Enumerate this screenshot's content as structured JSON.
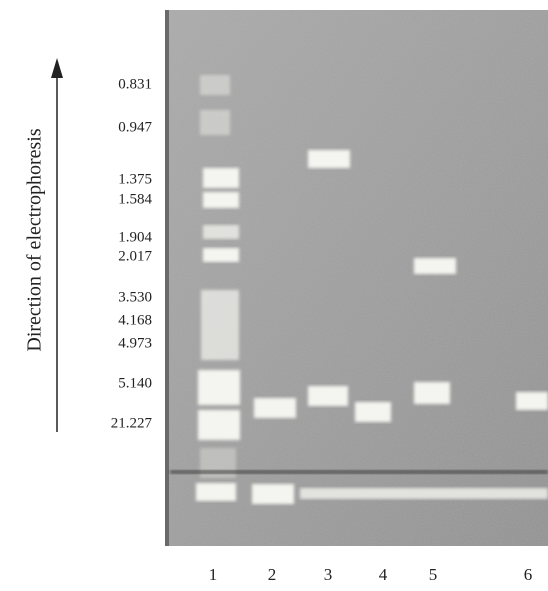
{
  "axis_label": "Direction of electrophoresis",
  "markers": [
    "0.831",
    "0.947",
    "1.375",
    "1.584",
    "1.904",
    "2.017",
    "3.530",
    "4.168",
    "4.973",
    "5.140",
    "21.227"
  ],
  "lanes": [
    "1",
    "2",
    "3",
    "4",
    "5",
    "6"
  ]
}
